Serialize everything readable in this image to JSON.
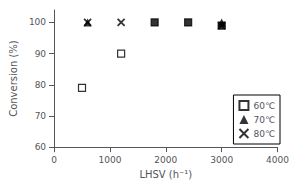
{
  "chart_data": {
    "type": "scatter",
    "xlabel": "LHSV (h⁻¹)",
    "ylabel": "Conversion (%)",
    "xlim": [
      0,
      4000
    ],
    "xticks": [
      0,
      1000,
      2000,
      3000,
      4000
    ],
    "ylim": [
      60,
      104
    ],
    "yticks": [
      60,
      70,
      80,
      90,
      100
    ],
    "grid": false,
    "legend": "right",
    "series": [
      {
        "name": "60℃",
        "color": "#000000",
        "marker": "open_square",
        "x": [
          500,
          1200,
          1800,
          2400,
          3000
        ],
        "values": [
          79,
          90,
          100,
          100,
          99
        ]
      },
      {
        "name": "70℃",
        "color": "#000000",
        "marker": "triangle",
        "x": [
          600,
          3000
        ],
        "values": [
          100,
          100
        ]
      },
      {
        "name": "80℃",
        "color": "#000000",
        "marker": "x",
        "x": [
          600,
          1200,
          3000
        ],
        "values": [
          100,
          100,
          99
        ]
      },
      {
        "color": "#000000",
        "marker": "square",
        "x": [
          1800,
          2400,
          3000
        ],
        "values": [
          100,
          100,
          99
        ]
      }
    ]
  }
}
